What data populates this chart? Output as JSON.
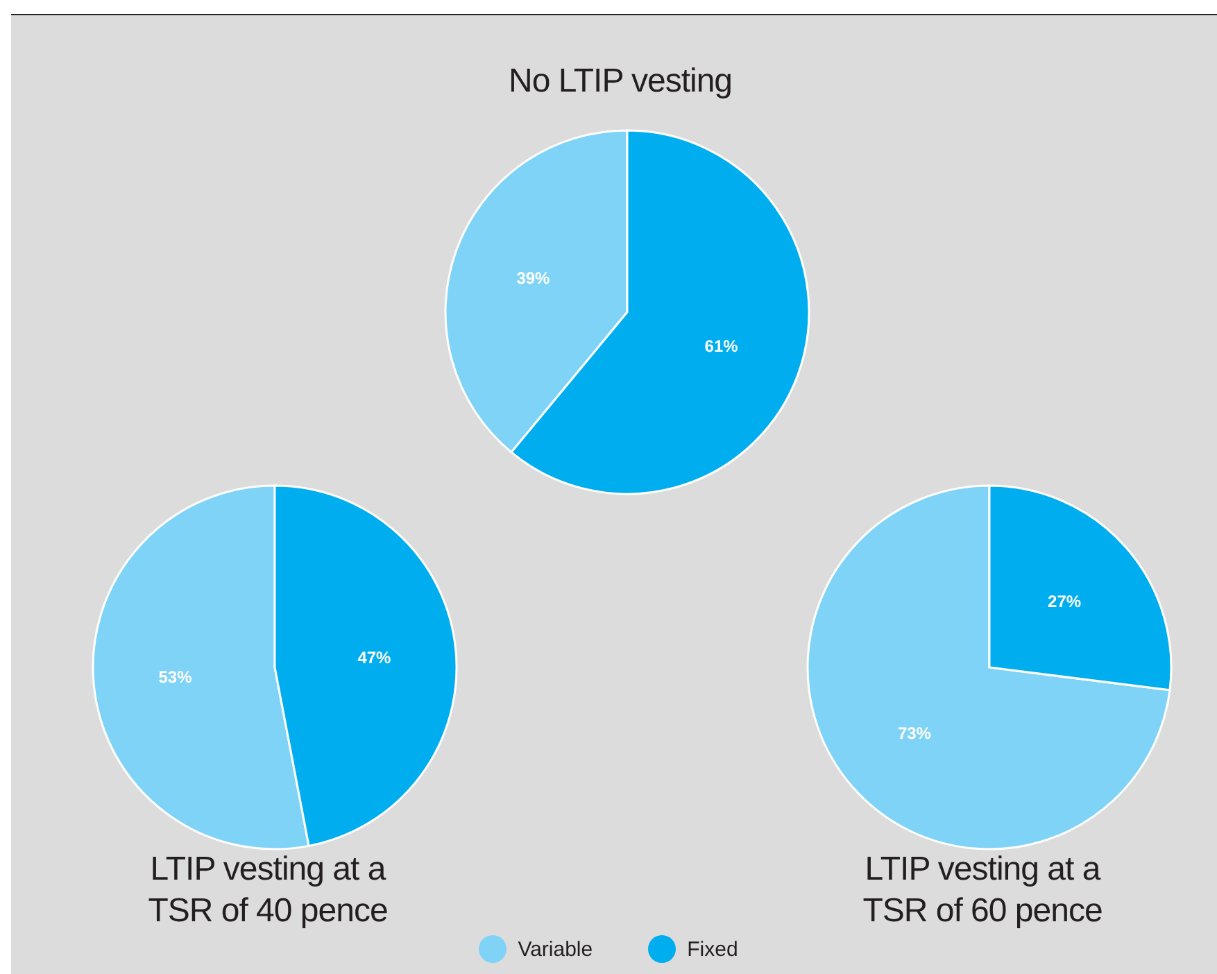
{
  "chart_data": [
    {
      "type": "pie",
      "title": "No LTIP vesting",
      "categories": [
        "Variable",
        "Fixed"
      ],
      "values": [
        39,
        61
      ],
      "colors": [
        "#7fd3f7",
        "#00aeef"
      ],
      "value_labels": [
        "39%",
        "61%"
      ],
      "legend": "bottom"
    },
    {
      "type": "pie",
      "title": "LTIP vesting at a TSR of 40 pence",
      "categories": [
        null,
        null
      ],
      "values": [
        53,
        47
      ],
      "colors": [
        "#7fd3f7",
        "#00aeef"
      ],
      "value_labels": [
        "53%",
        "47%"
      ]
    },
    {
      "type": "pie",
      "title": "LTIP vesting at a TSR of 60 pence",
      "categories": [
        null,
        null
      ],
      "values": [
        73,
        27
      ],
      "colors": [
        "#7fd3f7",
        "#00aeef"
      ],
      "value_labels": [
        "73%",
        "27%"
      ]
    }
  ]
}
